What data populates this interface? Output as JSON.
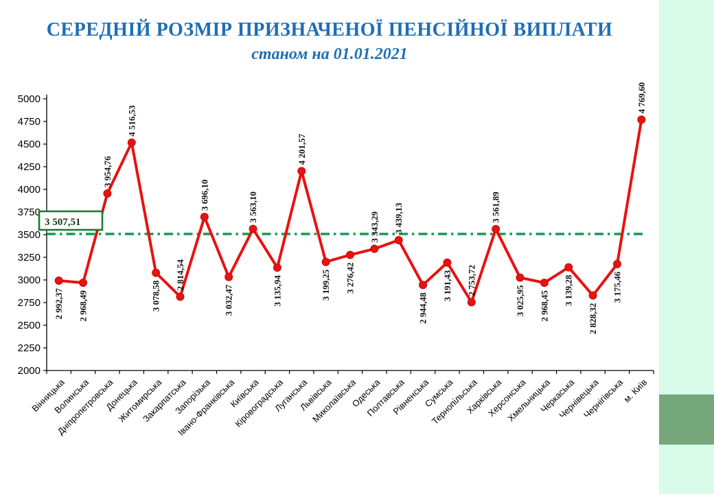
{
  "title": {
    "line1": "СЕРЕДНІЙ РОЗМІР ПРИЗНАЧЕНОЇ ПЕНСІЙНОЇ ВИПЛАТИ",
    "line2": "станом на 01.01.2021",
    "color": "#1f6eb4"
  },
  "average_box": {
    "label": "3 507,51",
    "value": 3507.51,
    "border_color": "#1c7a2e",
    "text_color": "#143c14",
    "fill": "#ffffff"
  },
  "decor": {
    "strip_color": "#d8fce9",
    "square_color": "#75a77b"
  },
  "chart_data": {
    "type": "line",
    "title": "СЕРЕДНІЙ РОЗМІР ПРИЗНАЧЕНОЇ ПЕНСІЙНОЇ ВИПЛАТИ станом на 01.01.2021",
    "xlabel": "",
    "ylabel": "",
    "ylim": [
      2000,
      5000
    ],
    "ytick_step": 250,
    "yticks": [
      2000,
      2250,
      2500,
      2750,
      3000,
      3250,
      3500,
      3750,
      4000,
      4250,
      4500,
      4750,
      5000
    ],
    "grid": false,
    "legend": "none",
    "line_color": "#e8120f",
    "marker_color": "#e8120f",
    "marker_edge_color": "#c00f0f",
    "average_line": {
      "value": 3507.51,
      "color": "#149a52",
      "style": "dash-dot"
    },
    "categories": [
      "Вінницька",
      "Волинська",
      "Дніпропетровська",
      "Донецька",
      "Житомирська",
      "Закарпатська",
      "Запорізька",
      "Івано-Франківська",
      "Київська",
      "Кіровоградська",
      "Луганська",
      "Львівська",
      "Миколаївська",
      "Одеська",
      "Полтавська",
      "Рівненська",
      "Сумська",
      "Тернопільська",
      "Харківська",
      "Херсонська",
      "Хмельницька",
      "Черкаська",
      "Чернівецька",
      "Чернігівська",
      "м. Київ"
    ],
    "values": [
      2992.37,
      2968.49,
      3954.76,
      4516.53,
      3078.58,
      2814.54,
      3696.1,
      3032.47,
      3563.1,
      3135.94,
      4201.57,
      3199.25,
      3276.42,
      3343.29,
      3439.13,
      2944.48,
      3191.43,
      2753.72,
      3561.89,
      3025.95,
      2968.45,
      3139.28,
      2828.32,
      3175.46,
      4769.6
    ],
    "value_labels": [
      "2 992,37",
      "2 968,49",
      "3 954,76",
      "4 516,53",
      "3 078,58",
      "2 814,54",
      "3 696,10",
      "3 032,47",
      "3 563,10",
      "3 135,94",
      "4 201,57",
      "3 199,25",
      "3 276,42",
      "3 343,29",
      "3 439,13",
      "2 944,48",
      "3 191,43",
      "2 753,72",
      "3 561,89",
      "3 025,95",
      "2 968,45",
      "3 139,28",
      "2 828,32",
      "3 175,46",
      "4 769,60"
    ],
    "label_side": [
      "below",
      "below",
      "above",
      "above",
      "below",
      "above",
      "above",
      "below",
      "above",
      "below",
      "above",
      "below",
      "below",
      "above",
      "above",
      "below",
      "below",
      "above",
      "above",
      "below",
      "below",
      "below",
      "below",
      "below",
      "above"
    ]
  }
}
